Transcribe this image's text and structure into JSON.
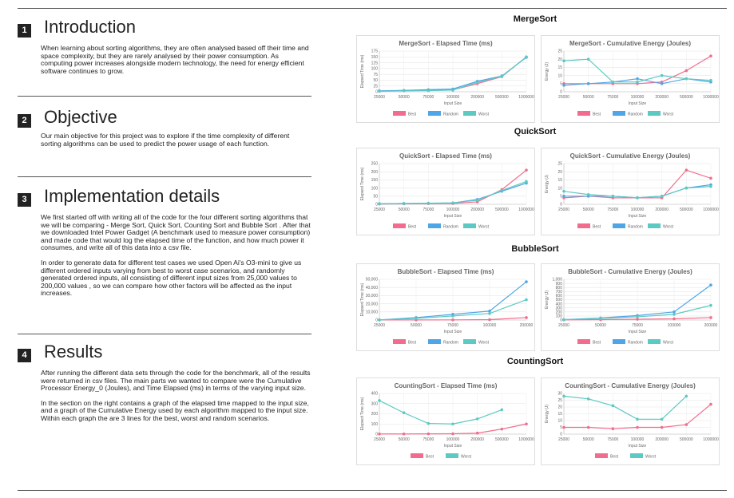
{
  "sections": [
    {
      "number": "1",
      "title": "Introduction",
      "paragraphs": [
        "When learning about sorting algorithms, they are often analysed based off their time and space complexity, but they are rarely analysed by their power consumption. As computing power increases alongside modern technology, the need for energy efficient software continues to grow."
      ]
    },
    {
      "number": "2",
      "title": "Objective",
      "paragraphs": [
        "Our main objective for this project was to explore if the time complexity of different sorting algorithms can be used to predict the power usage of each function."
      ]
    },
    {
      "number": "3",
      "title": "Implementation details",
      "paragraphs": [
        "We first started off with writing all of the code for the four different sorting algorithms that we will be comparing - Merge Sort, Quick Sort, Counting Sort and Bubble Sort . After that we downloaded Intel Power Gadget (A benchmark used to measure power consumption) and made code that would log the elapsed time of the function, and how much power it consumes, and write all of this data into a csv file.",
        "In order to generate data for different test cases we used Open Ai's O3-mini to give us different ordered inputs varying from best to worst case scenarios, and randomly generated ordered inputs, all consisting of different input sizes from 25,000 values to 200,000 values , so we can compare how other factors will be affected as the input increases."
      ]
    },
    {
      "number": "4",
      "title": "Results",
      "paragraphs": [
        "After running the different data sets through the code for the benchmark, all of the results were returned in csv files. The main parts we wanted to compare were the Cumulative Processor Energy_0 (Joules), and Time Elapsed (ms) in terms of the varying input size.",
        "In the section on the right contains a graph of the elapsed time mapped to the input size, and a graph of the Cumulative Energy used by each algorithm mapped to the input size. Within each graph the are 3 lines for the best, worst and random scenarios."
      ]
    }
  ],
  "colors": {
    "best": "#f26d8d",
    "random": "#4fa6e6",
    "worst": "#5cc9c2"
  },
  "algorithms": [
    {
      "name": "MergeSort",
      "charts": [
        {
          "type": "line",
          "title": "MergeSort - Elapsed Time (ms)",
          "xlabel": "Input Size",
          "ylabel": "Elapsed Time (ms)",
          "x": [
            "25000",
            "50000",
            "75000",
            "100000",
            "200000",
            "500000",
            "1000000"
          ],
          "ylim": [
            0,
            175
          ],
          "yticks": [
            "0",
            "25",
            "50",
            "75",
            "100",
            "125",
            "150",
            "175"
          ],
          "series": [
            {
              "name": "Best",
              "key": "best",
              "values": [
                3,
                5,
                6,
                8,
                35,
                65,
                150
              ]
            },
            {
              "name": "Random",
              "key": "random",
              "values": [
                4,
                6,
                9,
                12,
                45,
                68,
                148
              ]
            },
            {
              "name": "Worst",
              "key": "worst",
              "values": [
                2,
                4,
                5,
                7,
                40,
                66,
                150
              ]
            }
          ]
        },
        {
          "type": "line",
          "title": "MergeSort - Cumulative Energy (Joules)",
          "xlabel": "Input Size",
          "ylabel": "Energy (J)",
          "x": [
            "25000",
            "50000",
            "75000",
            "100000",
            "200000",
            "500000",
            "1000000"
          ],
          "ylim": [
            0,
            25
          ],
          "yticks": [
            "0",
            "5",
            "10",
            "15",
            "20",
            "25"
          ],
          "series": [
            {
              "name": "Best",
              "key": "best",
              "values": [
                5,
                5,
                5,
                5,
                6,
                13,
                22
              ]
            },
            {
              "name": "Random",
              "key": "random",
              "values": [
                4,
                5,
                6,
                8,
                5,
                8,
                6
              ]
            },
            {
              "name": "Worst",
              "key": "worst",
              "values": [
                19,
                20,
                6,
                6,
                10,
                8,
                7
              ]
            }
          ]
        }
      ]
    },
    {
      "name": "QuickSort",
      "charts": [
        {
          "type": "line",
          "title": "QuickSort - Elapsed Time (ms)",
          "xlabel": "Input Size",
          "ylabel": "Elapsed Time (ms)",
          "x": [
            "25000",
            "50000",
            "75000",
            "100000",
            "200000",
            "500000",
            "1000000"
          ],
          "ylim": [
            0,
            250
          ],
          "yticks": [
            "0",
            "50",
            "100",
            "150",
            "200",
            "250"
          ],
          "series": [
            {
              "name": "Best",
              "key": "best",
              "values": [
                2,
                3,
                4,
                5,
                15,
                90,
                210
              ]
            },
            {
              "name": "Random",
              "key": "random",
              "values": [
                3,
                5,
                6,
                8,
                30,
                80,
                130
              ]
            },
            {
              "name": "Worst",
              "key": "worst",
              "values": [
                4,
                5,
                7,
                9,
                25,
                85,
                140
              ]
            }
          ]
        },
        {
          "type": "line",
          "title": "QuickSort - Cumulative Energy (Joules)",
          "xlabel": "Input Size",
          "ylabel": "Energy (J)",
          "x": [
            "25000",
            "50000",
            "75000",
            "100000",
            "200000",
            "500000",
            "1000000"
          ],
          "ylim": [
            0,
            25
          ],
          "yticks": [
            "0",
            "5",
            "10",
            "15",
            "20",
            "25"
          ],
          "series": [
            {
              "name": "Best",
              "key": "best",
              "values": [
                4,
                5,
                4,
                4,
                4,
                21,
                16
              ]
            },
            {
              "name": "Random",
              "key": "random",
              "values": [
                5,
                5,
                5,
                4,
                5,
                10,
                12
              ]
            },
            {
              "name": "Worst",
              "key": "worst",
              "values": [
                8,
                6,
                5,
                4,
                5,
                10,
                11
              ]
            }
          ]
        }
      ]
    },
    {
      "name": "BubbleSort",
      "charts": [
        {
          "type": "line",
          "title": "BubbleSort - Elapsed Time (ms)",
          "xlabel": "Input Size",
          "ylabel": "Elapsed Time (ms)",
          "x": [
            "25000",
            "50000",
            "75000",
            "100000",
            "200000"
          ],
          "ylim": [
            0,
            50000
          ],
          "yticks": [
            "0",
            "10,000",
            "20,000",
            "30,000",
            "40,000",
            "50,000"
          ],
          "series": [
            {
              "name": "Best",
              "key": "best",
              "values": [
                50,
                100,
                200,
                500,
                3000
              ]
            },
            {
              "name": "Random",
              "key": "random",
              "values": [
                200,
                3000,
                7000,
                11000,
                47000
              ]
            },
            {
              "name": "Worst",
              "key": "worst",
              "values": [
                150,
                2000,
                5000,
                8000,
                25000
              ]
            }
          ]
        },
        {
          "type": "line",
          "title": "BubbleSort - Cumulative Energy (Joules)",
          "xlabel": "Input Size",
          "ylabel": "Energy (J)",
          "x": [
            "25000",
            "50000",
            "75000",
            "100000",
            "200000"
          ],
          "ylim": [
            0,
            1000
          ],
          "yticks": [
            "0",
            "100",
            "200",
            "300",
            "400",
            "500",
            "600",
            "700",
            "800",
            "900",
            "1,000"
          ],
          "series": [
            {
              "name": "Best",
              "key": "best",
              "values": [
                5,
                10,
                20,
                30,
                60
              ]
            },
            {
              "name": "Random",
              "key": "random",
              "values": [
                10,
                50,
                110,
                200,
                860
              ]
            },
            {
              "name": "Worst",
              "key": "worst",
              "values": [
                8,
                40,
                80,
                140,
                360
              ]
            }
          ]
        }
      ]
    },
    {
      "name": "CountingSort",
      "charts": [
        {
          "type": "line",
          "title": "CountingSort - Elapsed Time (ms)",
          "xlabel": "Input Size",
          "ylabel": "Elapsed Time (ms)",
          "x": [
            "25000",
            "50000",
            "75000",
            "100000",
            "200000",
            "500000",
            "1000000"
          ],
          "ylim": [
            0,
            400
          ],
          "yticks": [
            "0",
            "100",
            "200",
            "300",
            "400"
          ],
          "series": [
            {
              "name": "Best",
              "key": "best",
              "values": [
                2,
                2,
                3,
                4,
                10,
                50,
                100
              ]
            },
            {
              "name": "Worst",
              "key": "worst",
              "values": [
                330,
                210,
                105,
                100,
                150,
                240,
                null
              ]
            }
          ]
        },
        {
          "type": "line",
          "title": "CountingSort - Cumulative Energy (Joules)",
          "xlabel": "Input Size",
          "ylabel": "Energy (J)",
          "x": [
            "25000",
            "50000",
            "75000",
            "100000",
            "200000",
            "500000",
            "1000000"
          ],
          "ylim": [
            0,
            30
          ],
          "yticks": [
            "0",
            "5",
            "10",
            "15",
            "20",
            "25",
            "30"
          ],
          "series": [
            {
              "name": "Best",
              "key": "best",
              "values": [
                5,
                5,
                4,
                5,
                5,
                7,
                22
              ]
            },
            {
              "name": "Worst",
              "key": "worst",
              "values": [
                28,
                26,
                21,
                11,
                11,
                28,
                null
              ]
            }
          ]
        }
      ]
    }
  ]
}
